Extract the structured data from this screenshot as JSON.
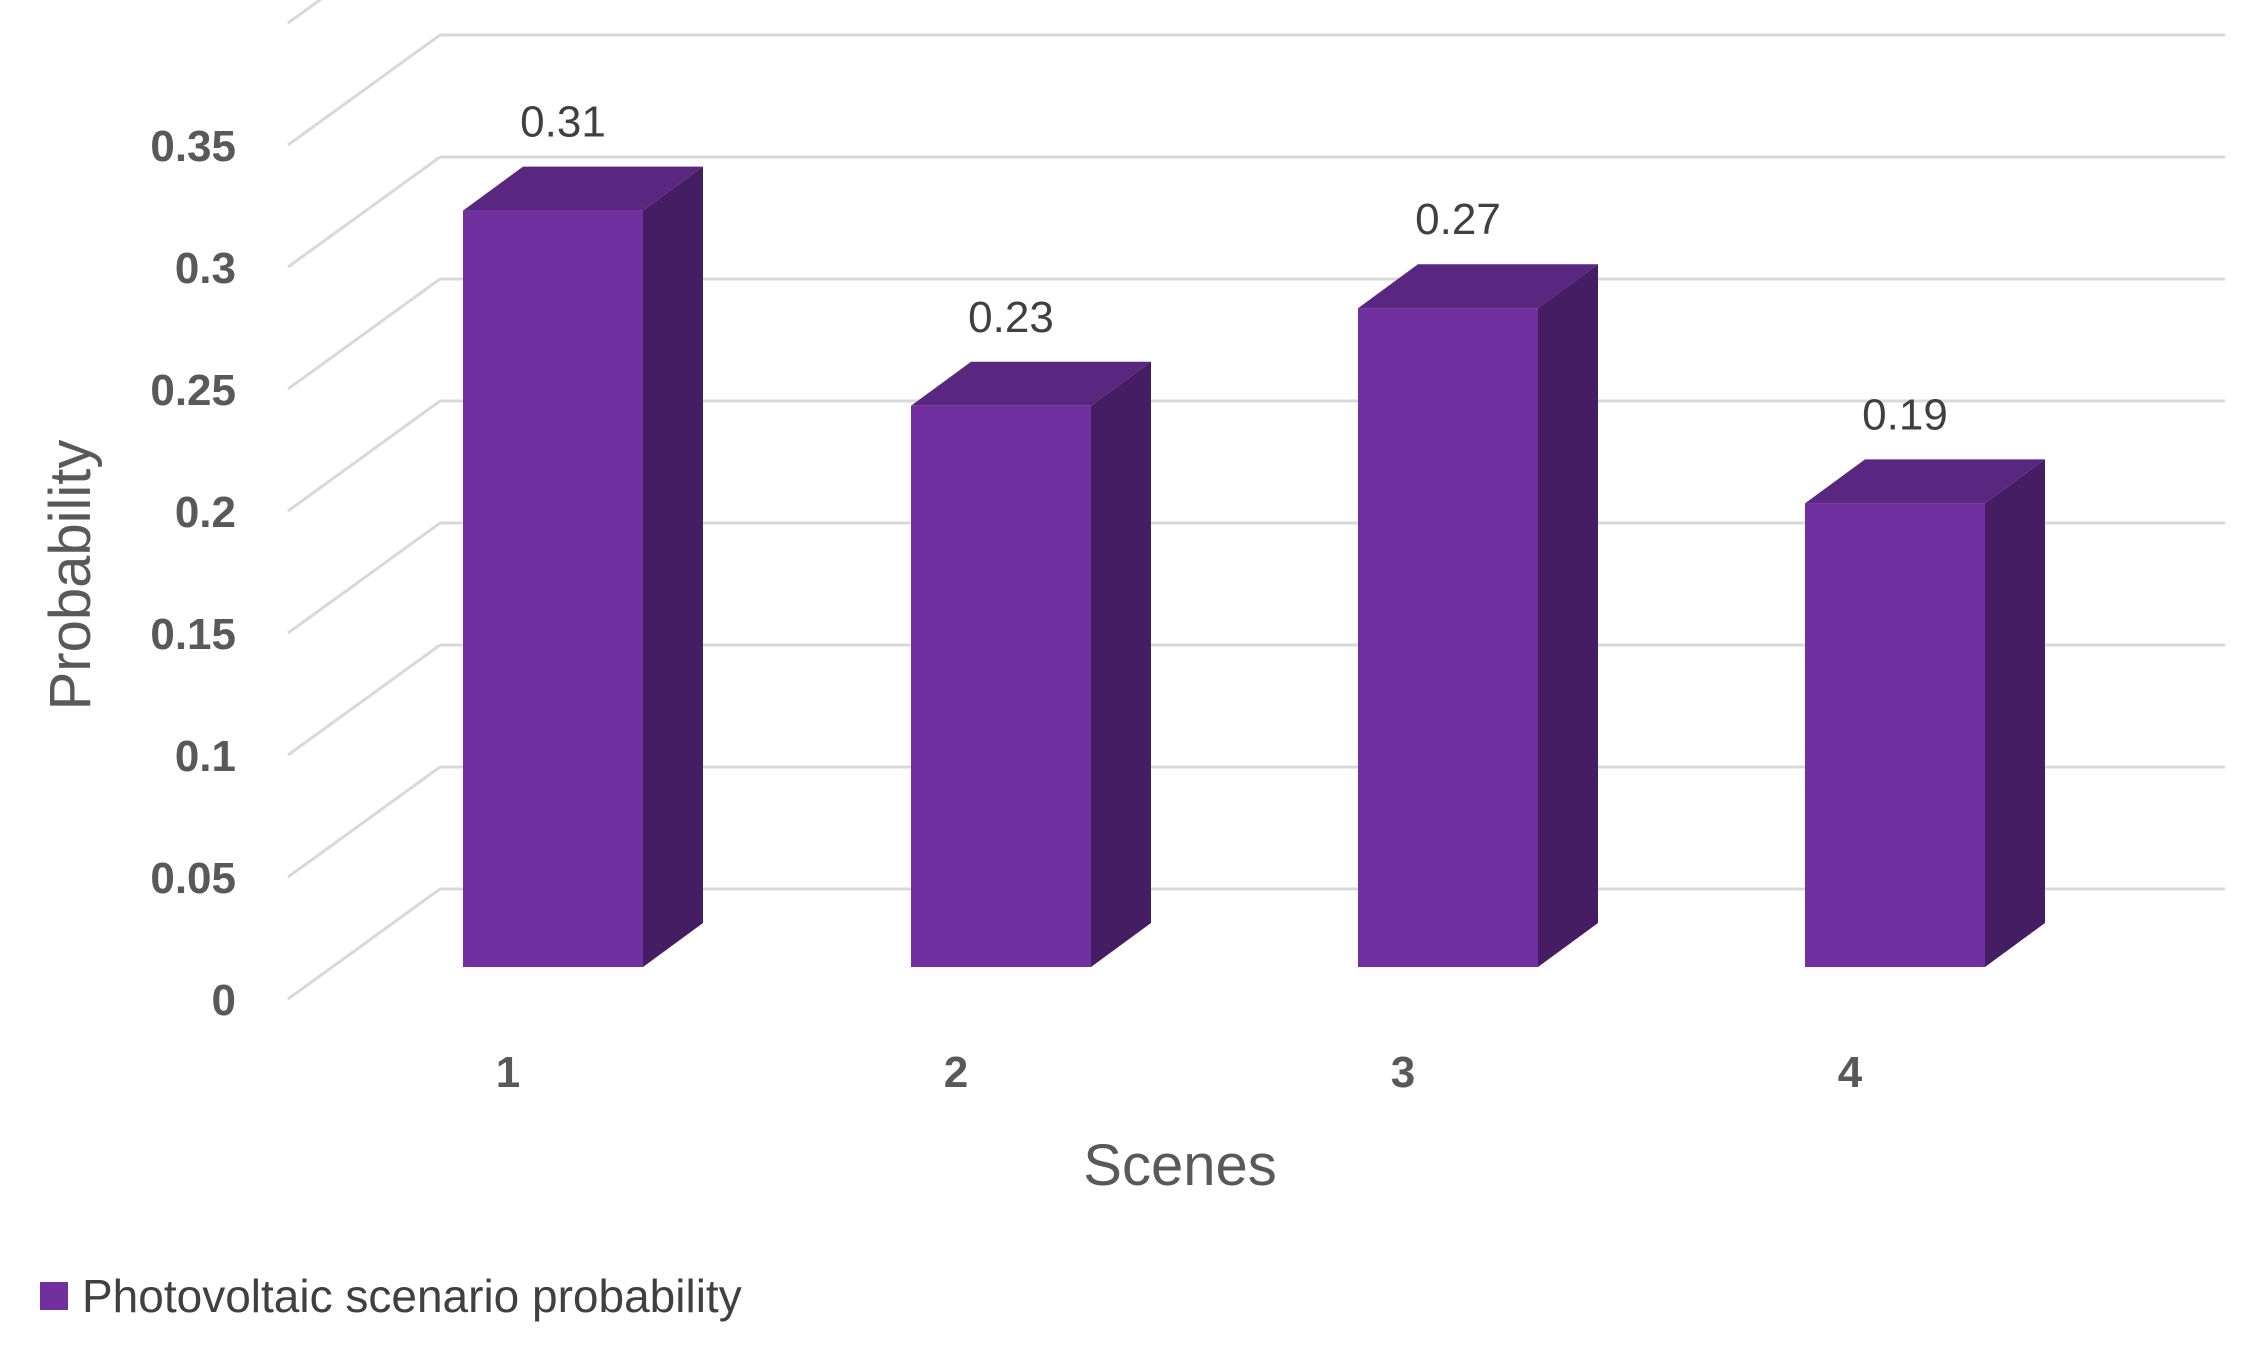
{
  "chart_data": {
    "type": "bar",
    "style": "3d-column",
    "categories": [
      "1",
      "2",
      "3",
      "4"
    ],
    "series": [
      {
        "name": "Photovoltaic scenario probability",
        "values": [
          0.31,
          0.23,
          0.27,
          0.19
        ],
        "color": "#7030A0",
        "side_color": "#451D62",
        "top_color": "#592680"
      }
    ],
    "data_labels": [
      "0.31",
      "0.23",
      "0.27",
      "0.19"
    ],
    "xlabel": "Scenes",
    "ylabel": "Probability",
    "ylim": [
      0,
      0.35
    ],
    "yticks": [
      0,
      0.05,
      0.1,
      0.15,
      0.2,
      0.25,
      0.3,
      0.35
    ],
    "ytick_labels": [
      "0",
      "0.05",
      "0.1",
      "0.15",
      "0.2",
      "0.25",
      "0.3",
      "0.35"
    ],
    "grid": true,
    "grid_color": "#d9d9d9",
    "legend_position": "bottom-left"
  }
}
